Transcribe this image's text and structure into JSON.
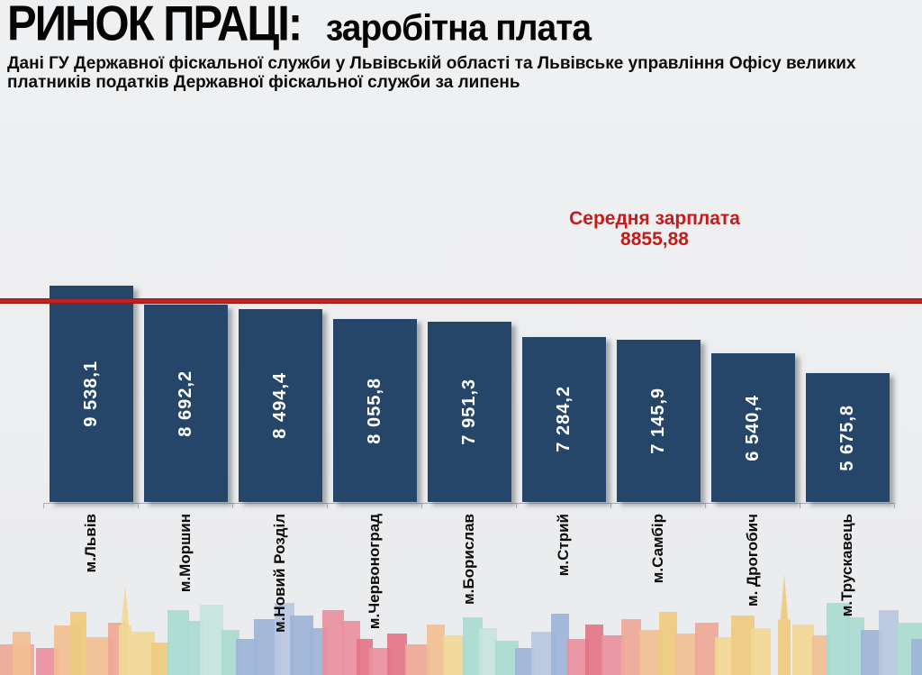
{
  "header": {
    "title_main": "РИНОК ПРАЦІ:",
    "title_accent": "заробітна плата",
    "subtitle": "Дані ГУ Державної фіскальної служби у Львівській області та Львівське управління Офісу великих платників податків Державної фіскальної служби за липень"
  },
  "annotation": {
    "label": "Середня зарплата",
    "value": "8855,88"
  },
  "chart_data": {
    "type": "bar",
    "title": "РИНОК ПРАЦІ: заробітна плата",
    "categories": [
      "м.Львів",
      "м.Моршин",
      "м.Новий Розділ",
      "м.Червоноград",
      "м.Борислав",
      "м.Стрий",
      "м.Самбір",
      "м. Дрогобич",
      "м.Трускавець"
    ],
    "values": [
      9538.1,
      8692.2,
      8494.4,
      8055.8,
      7951.3,
      7284.2,
      7145.9,
      6540.4,
      5675.8
    ],
    "value_labels": [
      "9 538,1",
      "8 692,2",
      "8 494,4",
      "8 055,8",
      "7 951,3",
      "7 284,2",
      "7 145,9",
      "6 540,4",
      "5 675,8"
    ],
    "reference_line": {
      "label": "Середня зарплата",
      "value": 8855.88,
      "value_label": "8855,88"
    },
    "ylim": [
      0,
      10000
    ],
    "grid": false,
    "legend": false,
    "bar_color": "#254669",
    "ref_line_color": "#C02322",
    "value_label_color": "#FFFFFF",
    "category_label_color": "#0B0B0B",
    "annotation_color": "#C41B1B"
  },
  "decor": {
    "skyline_palette": [
      "#F2BE93",
      "#EFA896",
      "#F2D795",
      "#EECB7E",
      "#A9DAD0",
      "#C4E4DC",
      "#9DB4D8",
      "#B8C7E0",
      "#E98FA0",
      "#E47487"
    ]
  }
}
